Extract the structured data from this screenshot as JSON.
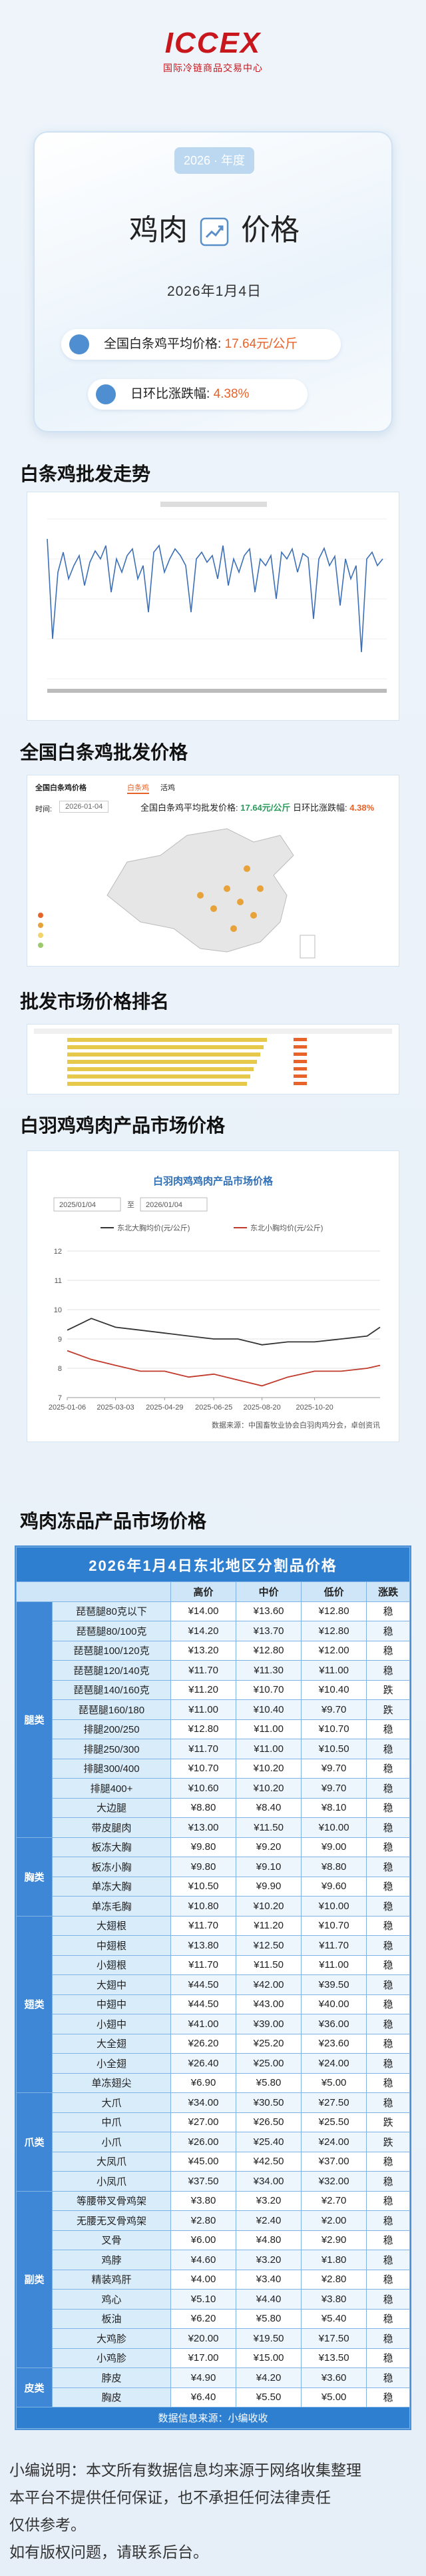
{
  "header": {
    "logo_text": "ICCEX",
    "logo_subtitle": "国际冷链商品交易中心",
    "year_badge": "2026 · 年度",
    "title_left": "鸡肉",
    "title_right": "价格",
    "date": "2026年1月4日",
    "avg_price_label": "全国白条鸡平均价格:",
    "avg_price_value": "17.64元/公斤",
    "change_label": "日环比涨跌幅:",
    "change_value": "4.38%"
  },
  "sections": [
    "白条鸡批发走势",
    "全国白条鸡批发价格",
    "批发市场价格排名",
    "白羽鸡鸡肉产品市场价格",
    "鸡肉冻品产品市场价格"
  ],
  "map_panel": {
    "title": "全国白条鸡价格",
    "tabs": [
      "白条鸡",
      "活鸡"
    ],
    "time_label": "时间:",
    "time_value": "2026-01-04",
    "avg_label": "全国白条鸡平均批发价格:",
    "avg_value": "17.64元/公斤",
    "change_label": "日环比涨跌幅:",
    "change_value": "4.38%"
  },
  "product_chart": {
    "type": "line",
    "title": "白羽肉鸡鸡肉产品市场价格",
    "date_start": "2025/01/04",
    "date_end": "2026/01/04",
    "separator": "至",
    "x": [
      "2025-01-06",
      "2025-02-03",
      "2025-03-03",
      "2025-04-01",
      "2025-04-29",
      "2025-05-27",
      "2025-06-25",
      "2025-07-23",
      "2025-08-20",
      "2025-09-19",
      "2025-10-20",
      "2025-11-20",
      "2025-12-20",
      "2026-01-04"
    ],
    "series": [
      {
        "name": "东北大胸均价(元/公斤)",
        "color": "#333333",
        "values": [
          9.3,
          9.7,
          9.4,
          9.3,
          9.2,
          9.1,
          9.0,
          9.0,
          8.8,
          8.9,
          8.9,
          9.0,
          9.1,
          9.4
        ]
      },
      {
        "name": "东北小胸均价(元/公斤)",
        "color": "#c0392b",
        "values": [
          8.6,
          8.3,
          8.1,
          7.9,
          7.9,
          7.7,
          7.8,
          7.6,
          7.4,
          7.7,
          7.9,
          7.9,
          8.0,
          8.1
        ]
      }
    ],
    "ylim": [
      7,
      12
    ],
    "yticks": [
      7,
      8,
      9,
      10,
      11,
      12
    ],
    "xlim": [
      "2025-01-06",
      "2026-01-04"
    ],
    "xticks": [
      "2025-01-06",
      "2025-03-03",
      "2025-04-29",
      "2025-06-25",
      "2025-08-20",
      "2025-10-20"
    ],
    "grid": true,
    "source": "数据来源：中国畜牧业协会白羽肉鸡分会，卓创资讯"
  },
  "table": {
    "title": "2026年1月4日东北地区分割品价格",
    "headers": [
      "高价",
      "中价",
      "低价",
      "涨跌"
    ],
    "groups": [
      {
        "category": "腿类",
        "rows": [
          [
            "琵琶腿80克以下",
            "¥14.00",
            "¥13.60",
            "¥12.80",
            "稳"
          ],
          [
            "琵琶腿80/100克",
            "¥14.20",
            "¥13.70",
            "¥12.80",
            "稳"
          ],
          [
            "琵琶腿100/120克",
            "¥13.20",
            "¥12.80",
            "¥12.00",
            "稳"
          ],
          [
            "琵琶腿120/140克",
            "¥11.70",
            "¥11.30",
            "¥11.00",
            "稳"
          ],
          [
            "琵琶腿140/160克",
            "¥11.20",
            "¥10.70",
            "¥10.40",
            "跌"
          ],
          [
            "琵琶腿160/180",
            "¥11.00",
            "¥10.40",
            "¥9.70",
            "跌"
          ],
          [
            "排腿200/250",
            "¥12.80",
            "¥11.00",
            "¥10.70",
            "稳"
          ],
          [
            "排腿250/300",
            "¥11.70",
            "¥11.00",
            "¥10.50",
            "稳"
          ],
          [
            "排腿300/400",
            "¥10.70",
            "¥10.20",
            "¥9.70",
            "稳"
          ],
          [
            "排腿400+",
            "¥10.60",
            "¥10.20",
            "¥9.70",
            "稳"
          ],
          [
            "大边腿",
            "¥8.80",
            "¥8.40",
            "¥8.10",
            "稳"
          ],
          [
            "带皮腿肉",
            "¥13.00",
            "¥11.50",
            "¥10.00",
            "稳"
          ]
        ]
      },
      {
        "category": "胸类",
        "rows": [
          [
            "板冻大胸",
            "¥9.80",
            "¥9.20",
            "¥9.00",
            "稳"
          ],
          [
            "板冻小胸",
            "¥9.80",
            "¥9.10",
            "¥8.80",
            "稳"
          ],
          [
            "单冻大胸",
            "¥10.50",
            "¥9.90",
            "¥9.60",
            "稳"
          ],
          [
            "单冻毛胸",
            "¥10.80",
            "¥10.20",
            "¥10.00",
            "稳"
          ]
        ]
      },
      {
        "category": "翅类",
        "rows": [
          [
            "大翅根",
            "¥11.70",
            "¥11.20",
            "¥10.70",
            "稳"
          ],
          [
            "中翅根",
            "¥13.80",
            "¥12.50",
            "¥11.70",
            "稳"
          ],
          [
            "小翅根",
            "¥11.70",
            "¥11.50",
            "¥11.00",
            "稳"
          ],
          [
            "大翅中",
            "¥44.50",
            "¥42.00",
            "¥39.50",
            "稳"
          ],
          [
            "中翅中",
            "¥44.50",
            "¥43.00",
            "¥40.00",
            "稳"
          ],
          [
            "小翅中",
            "¥41.00",
            "¥39.00",
            "¥36.00",
            "稳"
          ],
          [
            "大全翅",
            "¥26.20",
            "¥25.20",
            "¥23.60",
            "稳"
          ],
          [
            "小全翅",
            "¥26.40",
            "¥25.00",
            "¥24.00",
            "稳"
          ],
          [
            "单冻翅尖",
            "¥6.90",
            "¥5.80",
            "¥5.00",
            "稳"
          ]
        ]
      },
      {
        "category": "爪类",
        "rows": [
          [
            "大爪",
            "¥34.00",
            "¥30.50",
            "¥27.50",
            "稳"
          ],
          [
            "中爪",
            "¥27.00",
            "¥26.50",
            "¥25.50",
            "跌"
          ],
          [
            "小爪",
            "¥26.00",
            "¥25.40",
            "¥24.00",
            "跌"
          ],
          [
            "大凤爪",
            "¥45.00",
            "¥42.50",
            "¥37.00",
            "稳"
          ],
          [
            "小凤爪",
            "¥37.50",
            "¥34.00",
            "¥32.00",
            "稳"
          ]
        ]
      },
      {
        "category": "副类",
        "rows": [
          [
            "等腰带叉骨鸡架",
            "¥3.80",
            "¥3.20",
            "¥2.70",
            "稳"
          ],
          [
            "无腰无叉骨鸡架",
            "¥2.80",
            "¥2.40",
            "¥2.00",
            "稳"
          ],
          [
            "叉骨",
            "¥6.00",
            "¥4.80",
            "¥2.90",
            "稳"
          ],
          [
            "鸡脖",
            "¥4.60",
            "¥3.20",
            "¥1.80",
            "稳"
          ],
          [
            "精装鸡肝",
            "¥4.00",
            "¥3.40",
            "¥2.80",
            "稳"
          ],
          [
            "鸡心",
            "¥5.10",
            "¥4.40",
            "¥3.80",
            "稳"
          ],
          [
            "板油",
            "¥6.20",
            "¥5.80",
            "¥5.40",
            "稳"
          ],
          [
            "大鸡胗",
            "¥20.00",
            "¥19.50",
            "¥17.50",
            "稳"
          ],
          [
            "小鸡胗",
            "¥17.00",
            "¥15.00",
            "¥13.50",
            "稳"
          ]
        ]
      },
      {
        "category": "皮类",
        "rows": [
          [
            "脖皮",
            "¥4.90",
            "¥4.20",
            "¥3.60",
            "稳"
          ],
          [
            "胸皮",
            "¥6.40",
            "¥5.50",
            "¥5.00",
            "稳"
          ]
        ]
      }
    ],
    "source": "数据信息来源：小编收收"
  },
  "footer": {
    "lines": [
      "小编说明：本文所有数据信息均来源于网络收集整理",
      "本平台不提供任何保证，也不承担任何法律责任",
      "仅供参考。",
      "如有版权问题，请联系后台。"
    ]
  }
}
